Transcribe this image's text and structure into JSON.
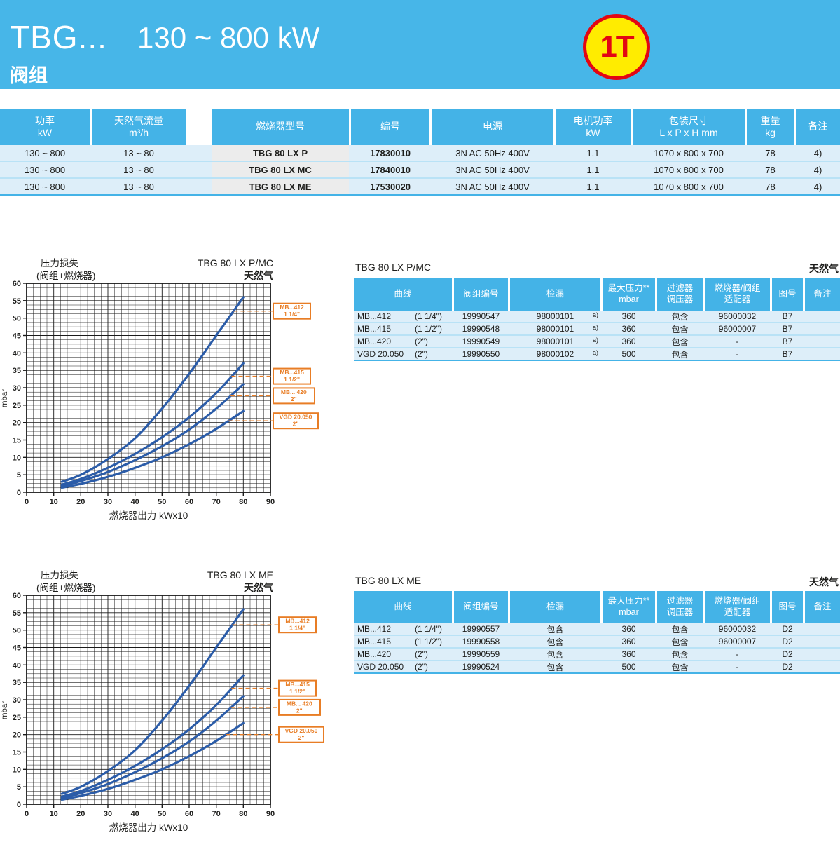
{
  "header": {
    "title": "TBG...",
    "power_range": "130 ~ 800 kW",
    "subtitle": "阀组",
    "badge": "1T"
  },
  "colors": {
    "band_blue": "#47b6e8",
    "table_header_blue": "#44b3e7",
    "row_light_blue": "#ddeef9",
    "gray_cell": "#ececec",
    "orange": "#e87d25",
    "curve_blue": "#2b5ca8",
    "badge_yellow": "#ffec00",
    "badge_red": "#e30613"
  },
  "spec_table": {
    "columns": [
      {
        "lines": [
          "功率",
          "kW"
        ]
      },
      {
        "lines": [
          "天然气流量",
          "m³/h"
        ]
      },
      {
        "lines": [
          "燃烧器型号"
        ]
      },
      {
        "lines": [
          "编号"
        ]
      },
      {
        "lines": [
          "电源"
        ]
      },
      {
        "lines": [
          "电机功率",
          "kW"
        ]
      },
      {
        "lines": [
          "包装尺寸",
          "L x P x H  mm"
        ]
      },
      {
        "lines": [
          "重量",
          "kg"
        ]
      },
      {
        "lines": [
          "备注"
        ]
      }
    ],
    "rows": [
      [
        "130 ~ 800",
        "13 ~ 80",
        "TBG 80 LX P",
        "17830010",
        "3N AC 50Hz 400V",
        "1.1",
        "1070 x 800 x 700",
        "78",
        "4)"
      ],
      [
        "130 ~ 800",
        "13 ~ 80",
        "TBG 80 LX MC",
        "17840010",
        "3N AC 50Hz 400V",
        "1.1",
        "1070 x 800 x 700",
        "78",
        "4)"
      ],
      [
        "130 ~ 800",
        "13 ~ 80",
        "TBG 80 LX ME",
        "17530020",
        "3N AC 50Hz 400V",
        "1.1",
        "1070 x 800 x 700",
        "78",
        "4)"
      ]
    ]
  },
  "chart_data": [
    {
      "type": "line",
      "title": "压力损失",
      "subtitle": "(阀组+燃烧器)",
      "model": "TBG 80 LX P/MC",
      "gas": "天然气",
      "xlabel": "燃烧器出力 kWx10",
      "ylabel": "mbar",
      "xlim": [
        0,
        90
      ],
      "ylim": [
        0,
        60
      ],
      "x_major": 10,
      "x_minor": 2.5,
      "y_major": 5,
      "y_minor": 1.25,
      "grid": true,
      "legend_position": "right-callouts",
      "x": [
        13,
        20,
        30,
        40,
        50,
        60,
        70,
        80
      ],
      "series": [
        {
          "name": "MB...412",
          "size": "1 1/4\"",
          "values": [
            3.0,
            5.0,
            9.5,
            15.5,
            24.0,
            34.0,
            45.0,
            56.0
          ],
          "callout_y": 52.0
        },
        {
          "name": "MB...415",
          "size": "1 1/2\"",
          "values": [
            2.2,
            3.8,
            7.0,
            11.0,
            15.8,
            21.5,
            28.5,
            37.0
          ],
          "callout_y": 33.3
        },
        {
          "name": "MB... 420",
          "size": "2\"",
          "values": [
            1.8,
            3.2,
            5.8,
            9.2,
            13.2,
            18.0,
            24.0,
            31.0
          ],
          "callout_y": 27.7
        },
        {
          "name": "VGD 20.050",
          "size": "2\"",
          "values": [
            1.3,
            2.4,
            4.4,
            7.0,
            10.0,
            13.8,
            18.2,
            23.3
          ],
          "callout_y": 20.5
        }
      ]
    },
    {
      "type": "line",
      "title": "压力损失",
      "subtitle": "(阀组+燃烧器)",
      "model": "TBG 80 LX ME",
      "gas": "天然气",
      "xlabel": "燃烧器出力  kWx10",
      "ylabel": "mbar",
      "xlim": [
        0,
        90
      ],
      "ylim": [
        0,
        60
      ],
      "x_major": 10,
      "x_minor": 2.5,
      "y_major": 5,
      "y_minor": 1.25,
      "grid": true,
      "legend_position": "right-callouts",
      "x": [
        13,
        20,
        30,
        40,
        50,
        60,
        70,
        80
      ],
      "series": [
        {
          "name": "MB...412",
          "size": "1 1/4\"",
          "values": [
            3.0,
            5.0,
            9.5,
            15.5,
            24.0,
            34.0,
            45.0,
            56.0
          ],
          "callout_y": 51.5
        },
        {
          "name": "MB...415",
          "size": "1 1/2\"",
          "values": [
            2.2,
            3.8,
            7.0,
            11.0,
            15.8,
            21.5,
            28.5,
            37.0
          ],
          "callout_y": 33.3
        },
        {
          "name": "MB... 420",
          "size": "2\"",
          "values": [
            1.8,
            3.2,
            5.8,
            9.2,
            13.2,
            18.0,
            24.0,
            31.0
          ],
          "callout_y": 27.8
        },
        {
          "name": "VGD 20.050",
          "size": "2\"",
          "values": [
            1.3,
            2.4,
            4.4,
            7.0,
            10.0,
            13.8,
            18.2,
            23.3
          ],
          "callout_y": 20.0
        }
      ]
    }
  ],
  "acc_tables": [
    {
      "title": "TBG 80 LX P/MC",
      "gas": "天然气",
      "columns": [
        {
          "lines": [
            "曲线"
          ]
        },
        {
          "lines": [
            "阀组编号"
          ]
        },
        {
          "lines": [
            "检漏"
          ]
        },
        {
          "lines": [
            "最大压力**",
            "mbar"
          ]
        },
        {
          "lines": [
            "过滤器",
            "调压器"
          ]
        },
        {
          "lines": [
            "燃烧器/阀组",
            "适配器"
          ]
        },
        {
          "lines": [
            "图号"
          ]
        },
        {
          "lines": [
            "备注"
          ]
        }
      ],
      "rows": [
        {
          "curve": "MB...412",
          "size": "(1 1/4\")",
          "valve_no": "19990547",
          "leak": "98000101",
          "leak_sup": "a)",
          "max_pressure": "360",
          "filter_regulator": "包含",
          "adapter": "96000032",
          "figure": "B7",
          "note": ""
        },
        {
          "curve": "MB...415",
          "size": "(1 1/2\")",
          "valve_no": "19990548",
          "leak": "98000101",
          "leak_sup": "a)",
          "max_pressure": "360",
          "filter_regulator": "包含",
          "adapter": "96000007",
          "figure": "B7",
          "note": ""
        },
        {
          "curve": "MB...420",
          "size": "(2\")",
          "valve_no": "19990549",
          "leak": "98000101",
          "leak_sup": "a)",
          "max_pressure": "360",
          "filter_regulator": "包含",
          "adapter": "-",
          "figure": "B7",
          "note": ""
        },
        {
          "curve": "VGD 20.050",
          "size": "(2\")",
          "valve_no": "19990550",
          "leak": "98000102",
          "leak_sup": "a)",
          "max_pressure": "500",
          "filter_regulator": "包含",
          "adapter": "-",
          "figure": "B7",
          "note": ""
        }
      ]
    },
    {
      "title": "TBG 80 LX ME",
      "gas": "天然气",
      "columns": [
        {
          "lines": [
            "曲线"
          ]
        },
        {
          "lines": [
            "阀组编号"
          ]
        },
        {
          "lines": [
            "检漏"
          ]
        },
        {
          "lines": [
            "最大压力**",
            "mbar"
          ]
        },
        {
          "lines": [
            "过滤器",
            "调压器"
          ]
        },
        {
          "lines": [
            "燃烧器/阀组",
            "适配器"
          ]
        },
        {
          "lines": [
            "图号"
          ]
        },
        {
          "lines": [
            "备注"
          ]
        }
      ],
      "rows": [
        {
          "curve": "MB...412",
          "size": "(1 1/4\")",
          "valve_no": "19990557",
          "leak": "包含",
          "leak_sup": "",
          "max_pressure": "360",
          "filter_regulator": "包含",
          "adapter": "96000032",
          "figure": "D2",
          "note": ""
        },
        {
          "curve": "MB...415",
          "size": "(1 1/2\")",
          "valve_no": "19990558",
          "leak": "包含",
          "leak_sup": "",
          "max_pressure": "360",
          "filter_regulator": "包含",
          "adapter": "96000007",
          "figure": "D2",
          "note": ""
        },
        {
          "curve": "MB...420",
          "size": "(2\")",
          "valve_no": "19990559",
          "leak": "包含",
          "leak_sup": "",
          "max_pressure": "360",
          "filter_regulator": "包含",
          "adapter": "-",
          "figure": "D2",
          "note": ""
        },
        {
          "curve": "VGD 20.050",
          "size": "(2\")",
          "valve_no": "19990524",
          "leak": "包含",
          "leak_sup": "",
          "max_pressure": "500",
          "filter_regulator": "包含",
          "adapter": "-",
          "figure": "D2",
          "note": ""
        }
      ]
    }
  ]
}
